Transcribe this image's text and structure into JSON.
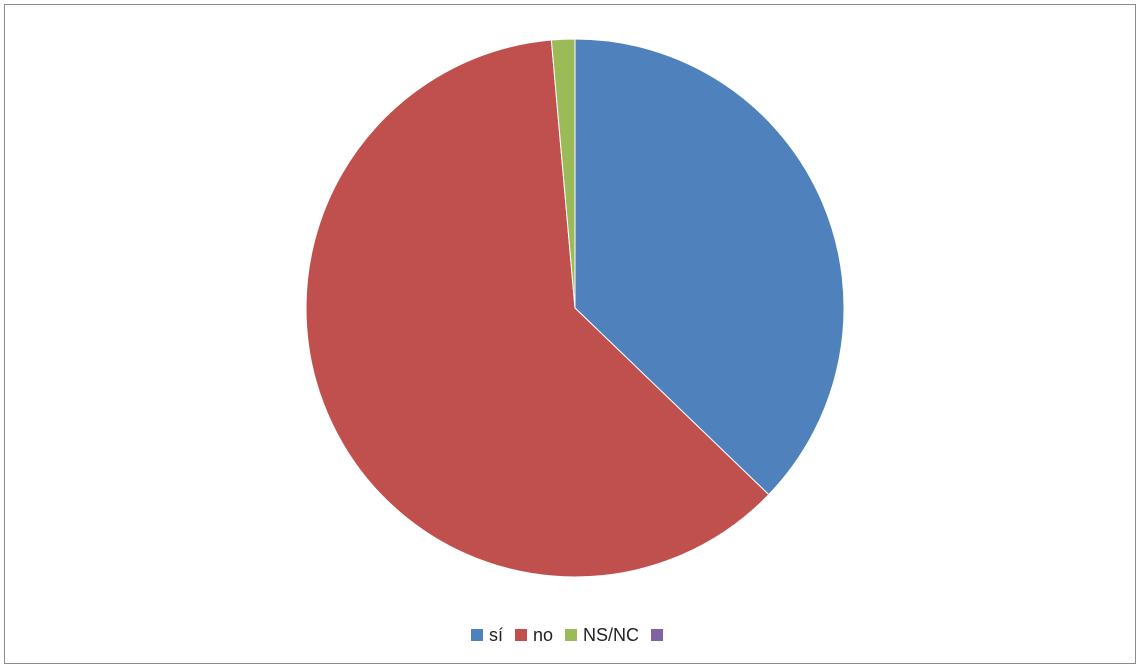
{
  "chart_data": {
    "type": "pie",
    "title": "",
    "start_angle_deg": 0,
    "direction": "clockwise",
    "slices": [
      {
        "label": "sí",
        "value": 37.2,
        "color": "#4F81BD"
      },
      {
        "label": "no",
        "value": 61.4,
        "color": "#C0504D"
      },
      {
        "label": "NS/NC",
        "value": 1.4,
        "color": "#9BBB59"
      },
      {
        "label": "",
        "value": 0,
        "color": "#8064A2"
      }
    ],
    "legend": {
      "position": "bottom"
    }
  }
}
